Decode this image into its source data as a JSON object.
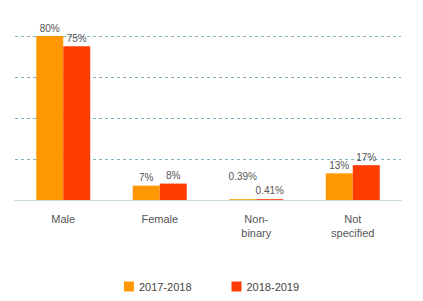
{
  "chart_data": {
    "type": "bar",
    "categories": [
      "Male",
      "Female",
      "Non-\nbinary",
      "Not\nspecified"
    ],
    "series": [
      {
        "name": "2017-2018",
        "color": "#ff9800",
        "values": [
          80,
          7,
          0.39,
          13
        ],
        "value_labels": [
          "80%",
          "7%",
          "0.39%",
          "13%"
        ]
      },
      {
        "name": "2018-2019",
        "color": "#ff3d00",
        "values": [
          75,
          8,
          0.41,
          17
        ],
        "value_labels": [
          "75%",
          "8%",
          "0.41%",
          "17%"
        ]
      }
    ],
    "ylim": [
      0,
      80
    ],
    "yticks": [
      0,
      20,
      40,
      60,
      80
    ],
    "grid": true,
    "legend": "bottom",
    "data_labels": true,
    "tick_labels": "x"
  }
}
